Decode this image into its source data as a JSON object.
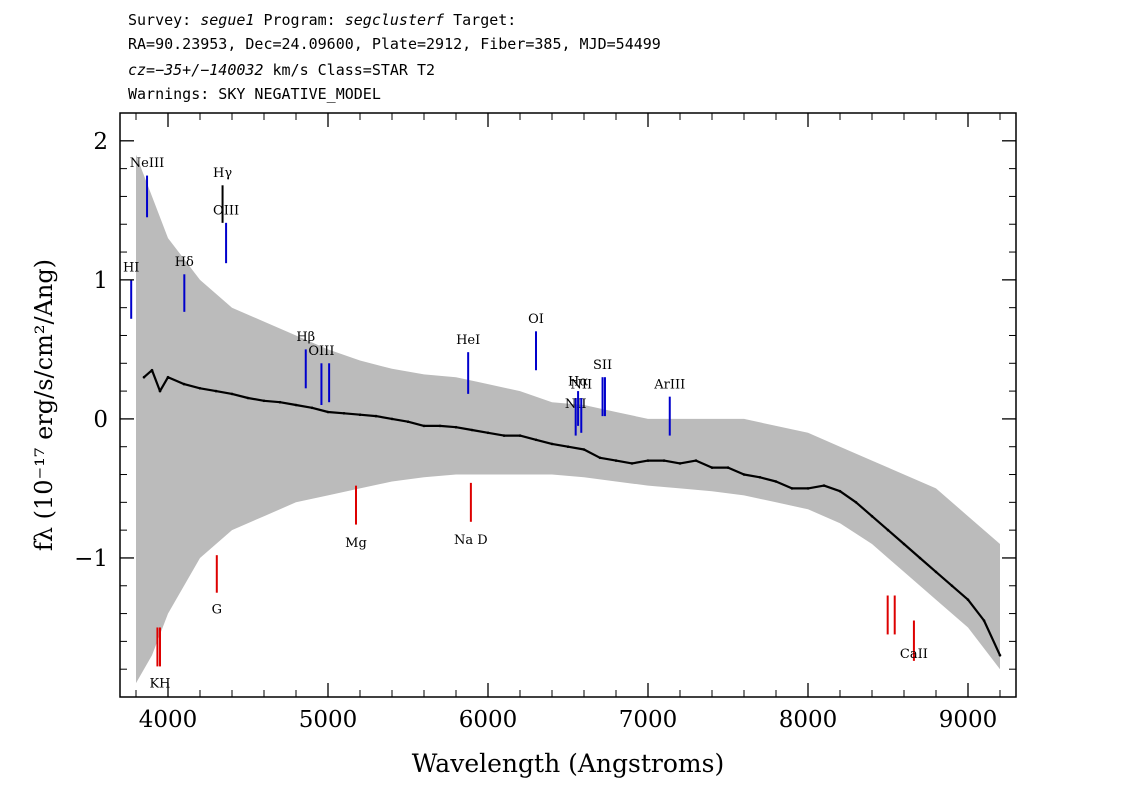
{
  "header": {
    "survey_label": "Survey:",
    "survey": "segue1",
    "program_label": "Program:",
    "program": "segclusterf",
    "target_label": "Target:",
    "line2": "RA=90.23953, Dec=24.09600, Plate=2912, Fiber=385, MJD=54499",
    "cz": "cz=−35+/−140032",
    "cz_unit": "km/s",
    "class": "Class=STAR T2",
    "warnings": "Warnings: SKY NEGATIVE_MODEL"
  },
  "chart_data": {
    "type": "line",
    "xlabel": "Wavelength (Angstroms)",
    "ylabel": "fλ (10⁻¹⁷ erg/s/cm²/Ang)",
    "xlim": [
      3700,
      9300
    ],
    "ylim": [
      -2.0,
      2.2
    ],
    "x_ticks": [
      4000,
      5000,
      6000,
      7000,
      8000,
      9000
    ],
    "x_tick_labels": [
      "4000",
      "5000",
      "6000",
      "7000",
      "8000",
      "9000"
    ],
    "y_ticks": [
      -1,
      0,
      1,
      2
    ],
    "y_tick_labels": [
      "−1",
      "0",
      "1",
      "2"
    ],
    "grid": false,
    "series": [
      {
        "role": "error band",
        "color": "#bbbbbb",
        "x": [
          3800,
          3900,
          4000,
          4200,
          4400,
          4600,
          4800,
          5000,
          5200,
          5400,
          5600,
          5800,
          6000,
          6200,
          6400,
          6600,
          6800,
          7000,
          7200,
          7400,
          7600,
          7800,
          8000,
          8200,
          8400,
          8600,
          8800,
          9000,
          9200
        ],
        "upper": [
          1.9,
          1.6,
          1.3,
          1.0,
          0.8,
          0.7,
          0.6,
          0.5,
          0.42,
          0.36,
          0.32,
          0.3,
          0.25,
          0.2,
          0.12,
          0.1,
          0.05,
          0.0,
          0.0,
          0.0,
          0.0,
          -0.05,
          -0.1,
          -0.2,
          -0.3,
          -0.4,
          -0.5,
          -0.7,
          -0.9
        ],
        "lower": [
          -1.9,
          -1.7,
          -1.4,
          -1.0,
          -0.8,
          -0.7,
          -0.6,
          -0.55,
          -0.5,
          -0.45,
          -0.42,
          -0.4,
          -0.4,
          -0.4,
          -0.4,
          -0.42,
          -0.45,
          -0.48,
          -0.5,
          -0.52,
          -0.55,
          -0.6,
          -0.65,
          -0.75,
          -0.9,
          -1.1,
          -1.3,
          -1.5,
          -1.8
        ]
      },
      {
        "role": "spectrum",
        "color": "#000000",
        "x": [
          3850,
          3900,
          3950,
          4000,
          4100,
          4200,
          4300,
          4400,
          4500,
          4600,
          4700,
          4800,
          4900,
          5000,
          5100,
          5200,
          5300,
          5400,
          5500,
          5600,
          5700,
          5800,
          5900,
          6000,
          6100,
          6200,
          6300,
          6400,
          6500,
          6600,
          6700,
          6800,
          6900,
          7000,
          7100,
          7200,
          7300,
          7400,
          7500,
          7600,
          7700,
          7800,
          7900,
          8000,
          8100,
          8200,
          8300,
          8400,
          8500,
          8600,
          8700,
          8800,
          8900,
          9000,
          9100,
          9200
        ],
        "y": [
          0.3,
          0.35,
          0.2,
          0.3,
          0.25,
          0.22,
          0.2,
          0.18,
          0.15,
          0.13,
          0.12,
          0.1,
          0.08,
          0.05,
          0.04,
          0.03,
          0.02,
          0.0,
          -0.02,
          -0.05,
          -0.05,
          -0.06,
          -0.08,
          -0.1,
          -0.12,
          -0.12,
          -0.15,
          -0.18,
          -0.2,
          -0.22,
          -0.28,
          -0.3,
          -0.32,
          -0.3,
          -0.3,
          -0.32,
          -0.3,
          -0.35,
          -0.35,
          -0.4,
          -0.42,
          -0.45,
          -0.5,
          -0.5,
          -0.48,
          -0.52,
          -0.6,
          -0.7,
          -0.8,
          -0.9,
          -1.0,
          -1.1,
          -1.2,
          -1.3,
          -1.45,
          -1.7
        ]
      }
    ],
    "annotations": [
      {
        "text": "NeIII",
        "x": 3869,
        "line_top": 1.75,
        "line_bottom": 1.45,
        "label_y": 1.81,
        "color": "#0000cc"
      },
      {
        "text": "Hγ",
        "x": 4341,
        "line_top": 1.68,
        "line_bottom": 1.41,
        "label_y": 1.74,
        "color": "#000000"
      },
      {
        "text": "OIII",
        "x": 4363,
        "line_top": 1.41,
        "line_bottom": 1.12,
        "label_y": 1.47,
        "color": "#0000cc"
      },
      {
        "text": "Hδ",
        "x": 4102,
        "line_top": 1.04,
        "line_bottom": 0.77,
        "label_y": 1.1,
        "color": "#0000cc"
      },
      {
        "text": "HI",
        "x": 3770,
        "line_top": 1.0,
        "line_bottom": 0.72,
        "label_y": 1.06,
        "color": "#0000cc"
      },
      {
        "text": "Hβ",
        "x": 4861,
        "line_top": 0.5,
        "line_bottom": 0.22,
        "label_y": 0.56,
        "color": "#0000cc"
      },
      {
        "text": "OIII",
        "x": 4959,
        "line_top": 0.4,
        "line_bottom": 0.1,
        "label_y": 0.46,
        "color": "#0000cc"
      },
      {
        "text": "",
        "x": 5007,
        "line_top": 0.4,
        "line_bottom": 0.12,
        "label_y": 0.0,
        "color": "#0000cc"
      },
      {
        "text": "HeI",
        "x": 5876,
        "line_top": 0.48,
        "line_bottom": 0.18,
        "label_y": 0.54,
        "color": "#0000cc"
      },
      {
        "text": "OI",
        "x": 6300,
        "line_top": 0.63,
        "line_bottom": 0.35,
        "label_y": 0.69,
        "color": "#0000cc"
      },
      {
        "text": "NII",
        "x": 6548,
        "line_top": 0.15,
        "line_bottom": -0.12,
        "label_y": 0.08,
        "color": "#0000cc"
      },
      {
        "text": "Hα",
        "x": 6563,
        "line_top": 0.2,
        "line_bottom": -0.05,
        "label_y": 0.24,
        "color": "#0000cc"
      },
      {
        "text": "NII",
        "x": 6583,
        "line_top": 0.15,
        "line_bottom": -0.1,
        "label_y": 0.22,
        "color": "#0000cc"
      },
      {
        "text": "SII",
        "x": 6716,
        "line_top": 0.3,
        "line_bottom": 0.02,
        "label_y": 0.36,
        "color": "#0000cc"
      },
      {
        "text": "",
        "x": 6731,
        "line_top": 0.3,
        "line_bottom": 0.02,
        "label_y": 0.0,
        "color": "#0000cc"
      },
      {
        "text": "ArIII",
        "x": 7136,
        "line_top": 0.16,
        "line_bottom": -0.12,
        "label_y": 0.22,
        "color": "#0000cc"
      },
      {
        "text": "Mg",
        "x": 5175,
        "line_top": -0.48,
        "line_bottom": -0.76,
        "label_y": -0.92,
        "color": "#dd0000"
      },
      {
        "text": "Na D",
        "x": 5893,
        "line_top": -0.46,
        "line_bottom": -0.74,
        "label_y": -0.9,
        "color": "#dd0000"
      },
      {
        "text": "G",
        "x": 4305,
        "line_top": -0.98,
        "line_bottom": -1.25,
        "label_y": -1.4,
        "color": "#dd0000"
      },
      {
        "text": "",
        "x": 3934,
        "line_top": -1.5,
        "line_bottom": -1.78,
        "label_y": 0.0,
        "color": "#dd0000"
      },
      {
        "text": "KH",
        "x": 3950,
        "line_top": -1.5,
        "line_bottom": -1.78,
        "label_y": -1.93,
        "color": "#dd0000"
      },
      {
        "text": "",
        "x": 8498,
        "line_top": -1.27,
        "line_bottom": -1.55,
        "label_y": 0.0,
        "color": "#dd0000"
      },
      {
        "text": "",
        "x": 8542,
        "line_top": -1.27,
        "line_bottom": -1.55,
        "label_y": 0.0,
        "color": "#dd0000"
      },
      {
        "text": "CaII",
        "x": 8662,
        "line_top": -1.45,
        "line_bottom": -1.74,
        "label_y": -1.72,
        "color": "#dd0000"
      }
    ]
  }
}
